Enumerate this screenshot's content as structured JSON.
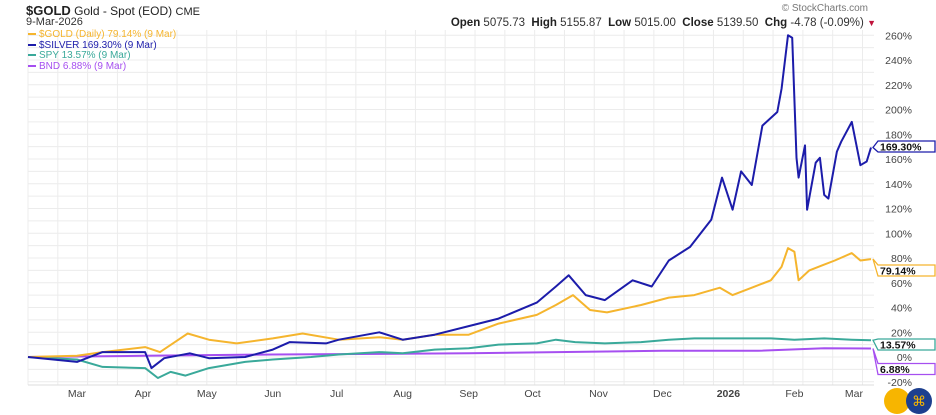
{
  "header": {
    "symbol": "$GOLD",
    "name": "Gold - Spot (EOD)",
    "exchange": "CME",
    "date": "9-Mar-2026",
    "open_label": "Open",
    "open": "5075.73",
    "high_label": "High",
    "high": "5155.87",
    "low_label": "Low",
    "low": "5015.00",
    "close_label": "Close",
    "close": "5139.50",
    "chg_label": "Chg",
    "chg": "-4.78 (-0.09%)",
    "brand": "© StockCharts.com"
  },
  "chart_data": {
    "type": "line",
    "xlabel": "",
    "ylabel": "",
    "ylim": [
      -20,
      260
    ],
    "yticks": [
      "260%",
      "240%",
      "220%",
      "200%",
      "180%",
      "160%",
      "140%",
      "120%",
      "100%",
      "80%",
      "60%",
      "40%",
      "20%",
      "0%",
      "-20%"
    ],
    "xticks": [
      "Mar",
      "Apr",
      "May",
      "Jun",
      "Jul",
      "Aug",
      "Sep",
      "Oct",
      "Nov",
      "Dec",
      "2026",
      "Feb",
      "Mar"
    ],
    "xrange": [
      "2025-02-06",
      "2026-03-09"
    ],
    "grid": true,
    "legend_placement": "top-left",
    "series": [
      {
        "name": "$GOLD (Daily) 79.14% (9 Mar)",
        "color": "#f5b52e",
        "end_label": "79.14%",
        "points": [
          [
            "2025-02-06",
            0
          ],
          [
            "2025-03-01",
            1
          ],
          [
            "2025-03-13",
            4
          ],
          [
            "2025-04-02",
            8
          ],
          [
            "2025-04-09",
            4
          ],
          [
            "2025-04-16",
            12
          ],
          [
            "2025-04-22",
            19
          ],
          [
            "2025-05-02",
            14
          ],
          [
            "2025-05-15",
            11
          ],
          [
            "2025-06-01",
            15
          ],
          [
            "2025-06-15",
            19
          ],
          [
            "2025-07-02",
            14
          ],
          [
            "2025-07-21",
            16
          ],
          [
            "2025-08-01",
            14
          ],
          [
            "2025-08-16",
            18
          ],
          [
            "2025-09-01",
            18
          ],
          [
            "2025-09-15",
            27
          ],
          [
            "2025-10-03",
            34
          ],
          [
            "2025-10-12",
            42
          ],
          [
            "2025-10-20",
            50
          ],
          [
            "2025-10-28",
            38
          ],
          [
            "2025-11-05",
            36
          ],
          [
            "2025-11-21",
            42
          ],
          [
            "2025-12-04",
            48
          ],
          [
            "2025-12-16",
            50
          ],
          [
            "2025-12-28",
            56
          ],
          [
            "2026-01-03",
            50
          ],
          [
            "2026-01-12",
            56
          ],
          [
            "2026-01-21",
            62
          ],
          [
            "2026-01-26",
            73
          ],
          [
            "2026-01-29",
            88
          ],
          [
            "2026-02-01",
            85
          ],
          [
            "2026-02-03",
            62
          ],
          [
            "2026-02-08",
            70
          ],
          [
            "2026-02-14",
            74
          ],
          [
            "2026-02-20",
            78
          ],
          [
            "2026-02-28",
            84
          ],
          [
            "2026-03-04",
            78
          ],
          [
            "2026-03-09",
            79.14
          ]
        ]
      },
      {
        "name": "$SILVER 169.30% (9 Mar)",
        "color": "#1c1caa",
        "end_label": "169.30%",
        "points": [
          [
            "2025-02-06",
            0
          ],
          [
            "2025-03-01",
            -4
          ],
          [
            "2025-03-13",
            4
          ],
          [
            "2025-04-02",
            4
          ],
          [
            "2025-04-05",
            -9
          ],
          [
            "2025-04-11",
            -1
          ],
          [
            "2025-04-23",
            3
          ],
          [
            "2025-05-02",
            -1
          ],
          [
            "2025-05-19",
            0
          ],
          [
            "2025-06-01",
            6
          ],
          [
            "2025-06-09",
            12
          ],
          [
            "2025-06-26",
            11
          ],
          [
            "2025-07-02",
            14
          ],
          [
            "2025-07-21",
            20
          ],
          [
            "2025-08-01",
            14
          ],
          [
            "2025-08-16",
            18
          ],
          [
            "2025-09-01",
            25
          ],
          [
            "2025-09-15",
            31
          ],
          [
            "2025-10-03",
            44
          ],
          [
            "2025-10-12",
            57
          ],
          [
            "2025-10-18",
            66
          ],
          [
            "2025-10-26",
            50
          ],
          [
            "2025-11-04",
            46
          ],
          [
            "2025-11-17",
            62
          ],
          [
            "2025-11-26",
            57
          ],
          [
            "2025-12-04",
            78
          ],
          [
            "2025-12-14",
            89
          ],
          [
            "2025-12-24",
            111
          ],
          [
            "2025-12-29",
            145
          ],
          [
            "2026-01-03",
            119
          ],
          [
            "2026-01-07",
            150
          ],
          [
            "2026-01-12",
            139
          ],
          [
            "2026-01-17",
            187
          ],
          [
            "2026-01-24",
            198
          ],
          [
            "2026-01-26",
            217
          ],
          [
            "2026-01-29",
            260
          ],
          [
            "2026-01-31",
            258
          ],
          [
            "2026-02-02",
            161
          ],
          [
            "2026-02-03",
            145
          ],
          [
            "2026-02-06",
            171
          ],
          [
            "2026-02-07",
            119
          ],
          [
            "2026-02-11",
            157
          ],
          [
            "2026-02-13",
            161
          ],
          [
            "2026-02-15",
            131
          ],
          [
            "2026-02-17",
            128
          ],
          [
            "2026-02-21",
            166
          ],
          [
            "2026-02-23",
            174
          ],
          [
            "2026-02-28",
            190
          ],
          [
            "2026-03-04",
            155
          ],
          [
            "2026-03-07",
            158
          ],
          [
            "2026-03-09",
            169.3
          ]
        ]
      },
      {
        "name": "SPY 13.57% (9 Mar)",
        "color": "#3aa99a",
        "end_label": "13.57%",
        "points": [
          [
            "2025-02-06",
            0
          ],
          [
            "2025-03-01",
            -2
          ],
          [
            "2025-03-13",
            -8
          ],
          [
            "2025-04-02",
            -9
          ],
          [
            "2025-04-08",
            -17
          ],
          [
            "2025-04-14",
            -12
          ],
          [
            "2025-04-21",
            -15
          ],
          [
            "2025-05-02",
            -9
          ],
          [
            "2025-05-19",
            -4
          ],
          [
            "2025-06-01",
            -2
          ],
          [
            "2025-06-19",
            0
          ],
          [
            "2025-07-02",
            2
          ],
          [
            "2025-07-21",
            4
          ],
          [
            "2025-08-01",
            3
          ],
          [
            "2025-08-16",
            6
          ],
          [
            "2025-09-01",
            7
          ],
          [
            "2025-09-15",
            10
          ],
          [
            "2025-10-03",
            11
          ],
          [
            "2025-10-12",
            14
          ],
          [
            "2025-10-21",
            12
          ],
          [
            "2025-11-04",
            11
          ],
          [
            "2025-11-21",
            12
          ],
          [
            "2025-12-04",
            14
          ],
          [
            "2025-12-16",
            15
          ],
          [
            "2026-01-03",
            15
          ],
          [
            "2026-01-21",
            15
          ],
          [
            "2026-02-01",
            14
          ],
          [
            "2026-02-15",
            15
          ],
          [
            "2026-02-28",
            14
          ],
          [
            "2026-03-09",
            13.57
          ]
        ]
      },
      {
        "name": "BND 6.88% (9 Mar)",
        "color": "#a64ff0",
        "end_label": "6.88%",
        "points": [
          [
            "2025-02-06",
            0
          ],
          [
            "2025-04-01",
            1
          ],
          [
            "2025-06-01",
            2
          ],
          [
            "2025-09-01",
            3
          ],
          [
            "2025-12-01",
            5
          ],
          [
            "2026-01-15",
            5
          ],
          [
            "2026-02-15",
            7
          ],
          [
            "2026-03-09",
            6.88
          ]
        ]
      }
    ]
  }
}
